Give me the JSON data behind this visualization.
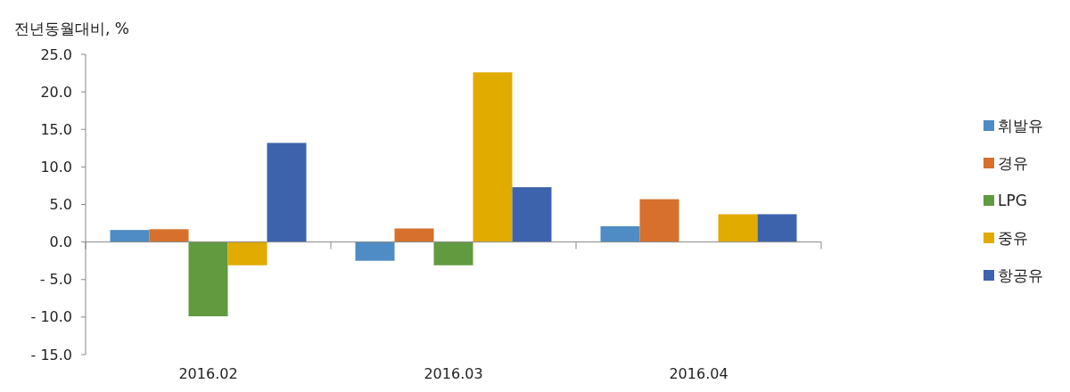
{
  "chart_data": {
    "type": "bar",
    "ylabel": "전년동월대비, %",
    "categories": [
      "2016.02",
      "2016.03",
      "2016.04"
    ],
    "series": [
      {
        "name": "휘발유",
        "color": "#4f8bc4",
        "values": [
          1.6,
          -2.5,
          2.1
        ]
      },
      {
        "name": "경유",
        "color": "#d6702c",
        "values": [
          1.7,
          1.8,
          5.7
        ]
      },
      {
        "name": "LPG",
        "color": "#619a3f",
        "values": [
          -9.9,
          -3.1,
          null
        ]
      },
      {
        "name": "중유",
        "color": "#e2ab00",
        "values": [
          -3.1,
          22.6,
          3.7
        ]
      },
      {
        "name": "항공유",
        "color": "#3d63ad",
        "values": [
          13.2,
          7.3,
          3.7
        ]
      }
    ],
    "ylim": [
      -15,
      25
    ],
    "yticks": [
      {
        "value": -15,
        "label": "- 15.0"
      },
      {
        "value": -10,
        "label": "- 10.0"
      },
      {
        "value": -5,
        "label": "- 5.0"
      },
      {
        "value": 0,
        "label": "0.0"
      },
      {
        "value": 5,
        "label": "5.0"
      },
      {
        "value": 10,
        "label": "10.0"
      },
      {
        "value": 15,
        "label": "15.0"
      },
      {
        "value": 20,
        "label": "20.0"
      },
      {
        "value": 25,
        "label": "25.0"
      }
    ],
    "legend": "right"
  }
}
